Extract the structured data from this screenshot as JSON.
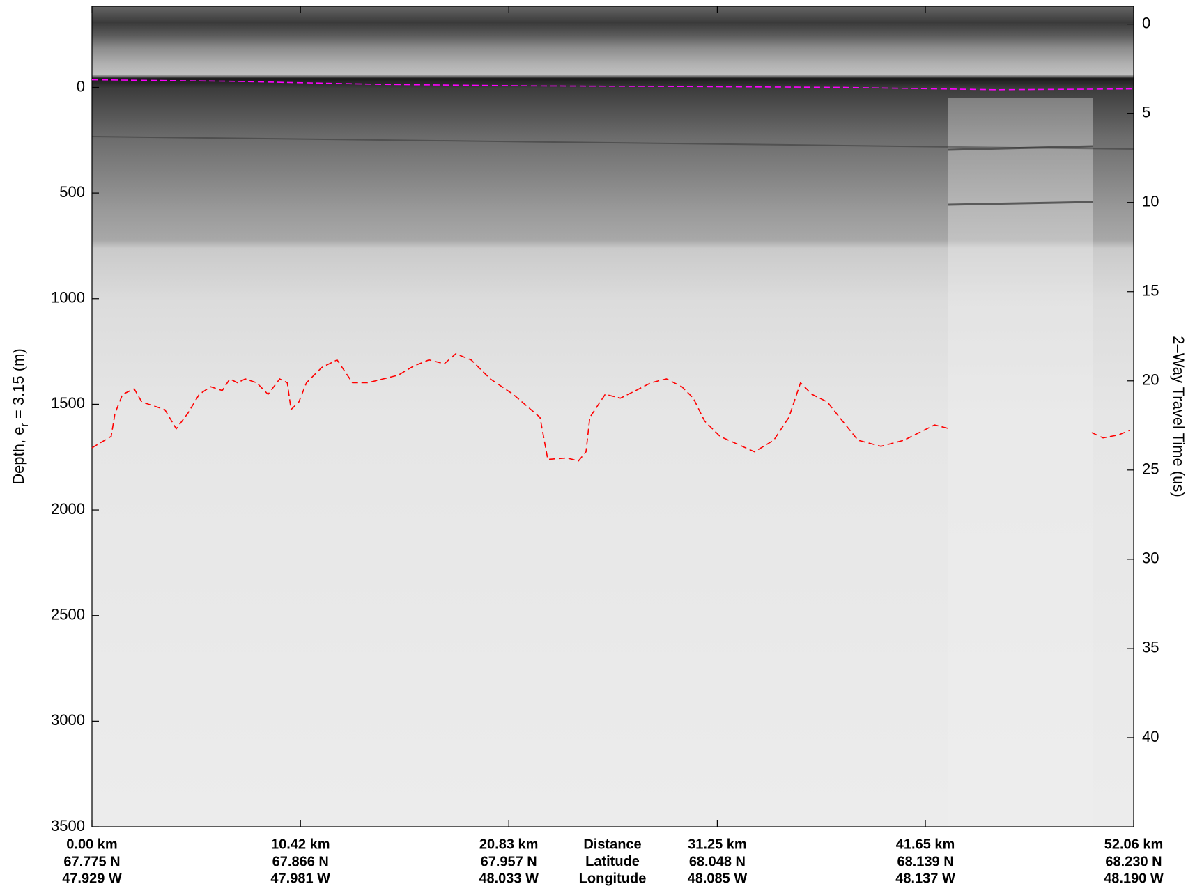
{
  "chart_data": {
    "type": "line",
    "ylabel": [
      "Depth, e",
      "r",
      " = 3.15 (m)"
    ],
    "y2label": "2–Way Travel Time (us)",
    "xlim": [
      0,
      52.06
    ],
    "ylim": [
      -384,
      3500
    ],
    "y_reversed": true,
    "yticks": [
      0,
      500,
      1000,
      1500,
      2000,
      2500,
      3000,
      3500
    ],
    "y2lim": [
      -1,
      45
    ],
    "y2ticks": [
      0,
      5,
      10,
      15,
      20,
      25,
      30,
      35,
      40
    ],
    "xticks": [
      {
        "value": 0,
        "label": "0.00 km"
      },
      {
        "value": 10.42,
        "label": "10.42 km"
      },
      {
        "value": 20.83,
        "label": "20.83 km"
      },
      {
        "value": 31.25,
        "label": "31.25 km"
      },
      {
        "value": 41.65,
        "label": "41.65 km"
      },
      {
        "value": 52.06,
        "label": "52.06 km"
      }
    ],
    "latitudes": [
      "67.775 N",
      "67.866 N",
      "67.957 N",
      "68.048 N",
      "68.139 N",
      "68.230 N"
    ],
    "longitudes": [
      "47.929 W",
      "47.981 W",
      "48.033 W",
      "48.085 W",
      "48.137 W",
      "48.190 W"
    ],
    "row_labels": [
      "Distance",
      "Latitude",
      "Longitude"
    ],
    "series": [
      {
        "color": "#ff00ff",
        "x": [
          0,
          6.89,
          14.55,
          22.2,
          29.86,
          37.51,
          45.17,
          52.06
        ],
        "values": [
          -36,
          -29,
          -14,
          -7,
          -4,
          0,
          11,
          7
        ]
      },
      {
        "color": "#ff0000",
        "x": [
          0,
          0.96,
          1.15,
          1.53,
          2.11,
          2.49,
          3.06,
          3.64,
          4.21,
          4.79,
          5.36,
          5.93,
          6.51,
          6.89,
          7.27,
          7.66,
          8.23,
          8.8,
          9.38,
          9.76,
          9.95,
          10.34,
          10.72,
          11.48,
          12.25,
          13.02,
          13.78,
          14.55,
          15.31,
          16.08,
          16.84,
          17.61,
          18.18,
          18.95,
          19.91,
          21.05,
          22.39,
          22.78,
          23.73,
          24.31,
          24.69,
          24.88,
          25.65,
          26.41,
          27.18,
          27.94,
          28.71,
          29.48,
          30.05,
          30.62,
          31.39,
          33.11,
          34.07,
          34.83,
          35.41,
          35.98,
          36.75,
          37.51,
          38.28,
          39.43,
          40.58,
          41.34,
          42.11,
          42.87,
          46.4,
          49.96,
          50.53,
          51.3,
          51.87
        ],
        "values": [
          1706,
          1652,
          1543,
          1453,
          1427,
          1489,
          1507,
          1525,
          1616,
          1543,
          1453,
          1417,
          1435,
          1380,
          1398,
          1380,
          1398,
          1453,
          1380,
          1398,
          1525,
          1489,
          1398,
          1326,
          1290,
          1398,
          1398,
          1380,
          1362,
          1319,
          1290,
          1308,
          1261,
          1290,
          1380,
          1453,
          1562,
          1761,
          1754,
          1768,
          1725,
          1562,
          1453,
          1471,
          1435,
          1398,
          1380,
          1417,
          1471,
          1580,
          1652,
          1725,
          1670,
          1562,
          1398,
          1453,
          1489,
          1580,
          1670,
          1699,
          1670,
          1634,
          1598,
          1616,
          null,
          1634,
          1659,
          1645,
          1623
        ]
      }
    ]
  }
}
